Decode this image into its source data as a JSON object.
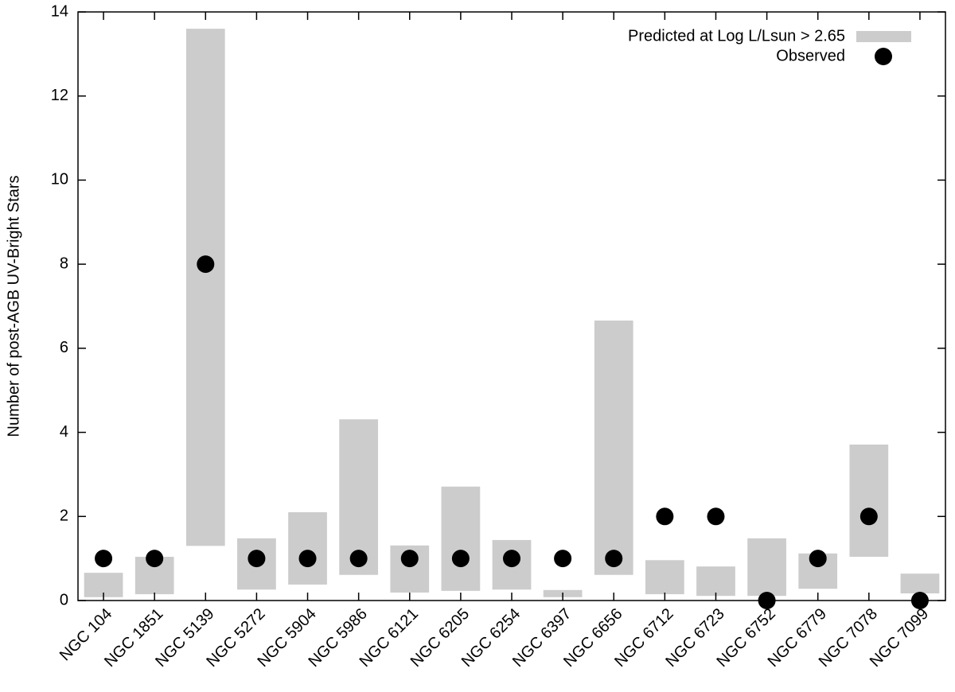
{
  "chart_data": {
    "type": "range-bar",
    "y_label": "Number of post-AGB UV-Bright Stars",
    "categories": [
      "NGC 104",
      "NGC 1851",
      "NGC 5139",
      "NGC 5272",
      "NGC 5904",
      "NGC 5986",
      "NGC 6121",
      "NGC 6205",
      "NGC 6254",
      "NGC 6397",
      "NGC 6656",
      "NGC 6712",
      "NGC 6723",
      "NGC 6752",
      "NGC 6779",
      "NGC 7078",
      "NGC 7099"
    ],
    "series": [
      {
        "name": "Predicted at Log L/Lsun > 2.65",
        "color": "#cccccc",
        "low": [
          0.08,
          0.15,
          1.3,
          0.26,
          0.38,
          0.61,
          0.19,
          0.23,
          0.26,
          0.08,
          0.61,
          0.15,
          0.11,
          0.11,
          0.28,
          1.04,
          0.17
        ],
        "high": [
          0.66,
          1.04,
          13.6,
          1.48,
          2.1,
          4.31,
          1.31,
          2.71,
          1.44,
          0.25,
          6.66,
          0.96,
          0.81,
          1.48,
          1.12,
          3.71,
          0.64
        ]
      },
      {
        "name": "Observed",
        "color": "#000000",
        "values": [
          1,
          1,
          8,
          1,
          1,
          1,
          1,
          1,
          1,
          1,
          1,
          2,
          2,
          0,
          1,
          2,
          0
        ]
      }
    ],
    "ylim": [
      0,
      14
    ],
    "yticks": [
      0,
      2,
      4,
      6,
      8,
      10,
      12,
      14
    ],
    "legend": "top-right"
  }
}
